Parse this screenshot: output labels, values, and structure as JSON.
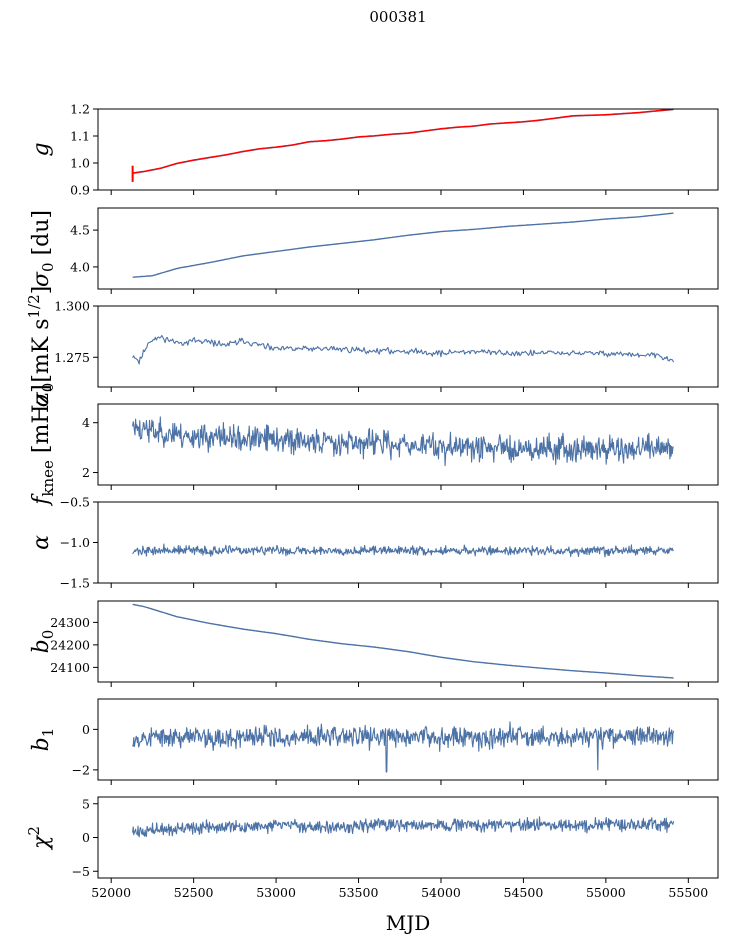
{
  "figure_title": "000381",
  "x_axis": {
    "label": "MJD",
    "range": [
      51920,
      55680
    ],
    "ticks": [
      52000,
      52500,
      53000,
      53500,
      54000,
      54500,
      55000,
      55500
    ],
    "tick_labels": [
      "52000",
      "52500",
      "53000",
      "53500",
      "54000",
      "54500",
      "55000",
      "55500"
    ]
  },
  "colors": {
    "series": "#4c72a6",
    "highlight": "#ff0000",
    "axes": "#000000"
  },
  "chart_data": [
    {
      "type": "line",
      "id": "g",
      "ylabel_main": "g",
      "ylabel_sub": "",
      "ylabel_tail": "",
      "ylim": [
        0.9,
        1.2
      ],
      "yticks": [
        0.9,
        1.0,
        1.1,
        1.2
      ],
      "ytick_labels": [
        "0.9",
        "1.0",
        "1.1",
        "1.2"
      ],
      "x_start": 52130,
      "x_end": 55410,
      "series": [
        {
          "kind": "smooth",
          "color": "#4c72a6",
          "x": [
            52130,
            52200,
            52300,
            52400,
            52500,
            52600,
            52700,
            52800,
            52900,
            53000,
            53100,
            53200,
            53300,
            53400,
            53500,
            53600,
            53700,
            53800,
            53900,
            54000,
            54100,
            54200,
            54300,
            54400,
            54500,
            54600,
            54700,
            54800,
            54900,
            55000,
            55100,
            55200,
            55300,
            55410
          ],
          "values": [
            0.962,
            0.968,
            0.98,
            0.998,
            1.01,
            1.02,
            1.03,
            1.042,
            1.052,
            1.058,
            1.066,
            1.078,
            1.082,
            1.088,
            1.096,
            1.1,
            1.106,
            1.11,
            1.118,
            1.126,
            1.132,
            1.136,
            1.144,
            1.148,
            1.152,
            1.158,
            1.166,
            1.174,
            1.176,
            1.178,
            1.182,
            1.186,
            1.192,
            1.198
          ]
        },
        {
          "kind": "smooth",
          "color": "#ff0000",
          "x": [
            52130,
            52200,
            52300,
            52400,
            52500,
            52600,
            52700,
            52800,
            52900,
            53000,
            53100,
            53200,
            53300,
            53400,
            53500,
            53600,
            53700,
            53800,
            53900,
            54000,
            54100,
            54200,
            54300,
            54400,
            54500,
            54600,
            54700,
            54800,
            54900,
            55000,
            55100,
            55200,
            55300,
            55410
          ],
          "values": [
            0.963,
            0.969,
            0.981,
            0.999,
            1.011,
            1.021,
            1.031,
            1.043,
            1.053,
            1.059,
            1.067,
            1.079,
            1.083,
            1.089,
            1.097,
            1.101,
            1.107,
            1.111,
            1.119,
            1.127,
            1.133,
            1.137,
            1.145,
            1.149,
            1.153,
            1.159,
            1.167,
            1.175,
            1.177,
            1.179,
            1.183,
            1.187,
            1.193,
            1.199
          ]
        },
        {
          "kind": "spike",
          "color": "#ff0000",
          "x": 52130,
          "values": [
            0.93,
            0.99
          ]
        }
      ]
    },
    {
      "type": "line",
      "id": "sigma0_du",
      "ylabel_main": "σ",
      "ylabel_sub": "0",
      "ylabel_tail": " [du]",
      "ylim": [
        3.7,
        4.8
      ],
      "yticks": [
        4.0,
        4.5
      ],
      "ytick_labels": [
        "4.0",
        "4.5"
      ],
      "x_start": 52130,
      "x_end": 55410,
      "series": [
        {
          "kind": "smooth",
          "color": "#4c72a6",
          "x": [
            52130,
            52250,
            52400,
            52600,
            52800,
            53000,
            53200,
            53400,
            53600,
            53800,
            54000,
            54200,
            54400,
            54600,
            54800,
            55000,
            55200,
            55410
          ],
          "values": [
            3.86,
            3.88,
            3.98,
            4.06,
            4.15,
            4.21,
            4.27,
            4.32,
            4.37,
            4.43,
            4.48,
            4.51,
            4.55,
            4.58,
            4.61,
            4.65,
            4.68,
            4.73
          ]
        }
      ]
    },
    {
      "type": "line",
      "id": "sigma0_mk",
      "ylabel_main": "σ",
      "ylabel_sub": "0",
      "ylabel_tail": "[mK s",
      "ylabel_sup": "1/2",
      "ylabel_end": "]",
      "ylim": [
        1.2605,
        1.3
      ],
      "yticks": [
        1.275,
        1.3
      ],
      "ytick_labels": [
        "1.275",
        "1.300"
      ],
      "x_start": 52130,
      "x_end": 55410,
      "series": [
        {
          "kind": "noisy",
          "color": "#4c72a6",
          "noise": 0.0012,
          "n": 500,
          "seed": 11,
          "x": [
            52130,
            52170,
            52230,
            52300,
            52400,
            52500,
            52600,
            52700,
            52800,
            52900,
            53000,
            53200,
            53400,
            53600,
            53800,
            54000,
            54200,
            54400,
            54600,
            54800,
            55000,
            55200,
            55300,
            55410
          ],
          "values": [
            1.276,
            1.273,
            1.283,
            1.285,
            1.282,
            1.283,
            1.282,
            1.281,
            1.283,
            1.281,
            1.279,
            1.279,
            1.279,
            1.278,
            1.278,
            1.277,
            1.278,
            1.277,
            1.277,
            1.277,
            1.277,
            1.276,
            1.276,
            1.273
          ]
        }
      ]
    },
    {
      "type": "line",
      "id": "fknee",
      "ylabel_main": "f",
      "ylabel_sub": "knee",
      "ylabel_tail": " [mHz]",
      "ylim": [
        1.5,
        4.75
      ],
      "yticks": [
        2,
        4
      ],
      "ytick_labels": [
        "2",
        "4"
      ],
      "x_start": 52130,
      "x_end": 55410,
      "series": [
        {
          "kind": "noisy",
          "color": "#4c72a6",
          "noise": 0.42,
          "n": 900,
          "seed": 23,
          "x": [
            52130,
            52300,
            52600,
            53000,
            53500,
            54000,
            54500,
            55000,
            55410
          ],
          "values": [
            3.9,
            3.6,
            3.4,
            3.3,
            3.2,
            3.05,
            3.0,
            2.95,
            2.9
          ]
        }
      ]
    },
    {
      "type": "line",
      "id": "alpha",
      "ylabel_main": "α",
      "ylabel_sub": "",
      "ylabel_tail": "",
      "ylim": [
        -1.5,
        -0.5
      ],
      "yticks": [
        -1.5,
        -1.0,
        -0.5
      ],
      "ytick_labels": [
        "−1.5",
        "−1.0",
        "−0.5"
      ],
      "x_start": 52130,
      "x_end": 55410,
      "series": [
        {
          "kind": "noisy",
          "color": "#4c72a6",
          "noise": 0.045,
          "n": 900,
          "seed": 37,
          "x": [
            52130,
            55410
          ],
          "values": [
            -1.1,
            -1.1
          ]
        }
      ]
    },
    {
      "type": "line",
      "id": "b0",
      "ylabel_main": "b",
      "ylabel_sub": "0",
      "ylabel_tail": "",
      "ylim": [
        24035,
        24395
      ],
      "yticks": [
        24100,
        24200,
        24300
      ],
      "ytick_labels": [
        "24100",
        "24200",
        "24300"
      ],
      "x_start": 52130,
      "x_end": 55410,
      "series": [
        {
          "kind": "smooth",
          "color": "#4c72a6",
          "x": [
            52130,
            52200,
            52400,
            52600,
            52800,
            53000,
            53200,
            53400,
            53600,
            53800,
            54000,
            54200,
            54400,
            54600,
            54800,
            55000,
            55200,
            55410
          ],
          "values": [
            24380,
            24370,
            24325,
            24295,
            24270,
            24250,
            24225,
            24205,
            24190,
            24170,
            24145,
            24125,
            24110,
            24097,
            24085,
            24075,
            24063,
            24053
          ]
        }
      ]
    },
    {
      "type": "line",
      "id": "b1",
      "ylabel_main": "b",
      "ylabel_sub": "1",
      "ylabel_tail": "",
      "ylim": [
        -2.5,
        1.5
      ],
      "yticks": [
        -2,
        0
      ],
      "ytick_labels": [
        "−2",
        "0"
      ],
      "x_start": 52130,
      "x_end": 55410,
      "series": [
        {
          "kind": "noisy",
          "color": "#4c72a6",
          "noise": 0.42,
          "n": 900,
          "seed": 53,
          "x": [
            52130,
            55410
          ],
          "values": [
            -0.4,
            -0.3
          ],
          "dips": [
            [
              53670,
              -2.1
            ],
            [
              54950,
              -2.0
            ]
          ]
        }
      ]
    },
    {
      "type": "line",
      "id": "chi2",
      "ylabel_main": "χ",
      "ylabel_sub": "",
      "ylabel_tail": "",
      "ylabel_sup": "2",
      "ylim": [
        -6,
        6
      ],
      "yticks": [
        -5,
        0,
        5
      ],
      "ytick_labels": [
        "−5",
        "0",
        "5"
      ],
      "x_start": 52130,
      "x_end": 55410,
      "series": [
        {
          "kind": "noisy",
          "color": "#4c72a6",
          "noise": 0.75,
          "n": 900,
          "seed": 71,
          "x": [
            52130,
            52400,
            53000,
            54000,
            55000,
            55410
          ],
          "values": [
            0.8,
            1.3,
            1.7,
            1.8,
            1.9,
            2.1
          ]
        }
      ]
    }
  ]
}
